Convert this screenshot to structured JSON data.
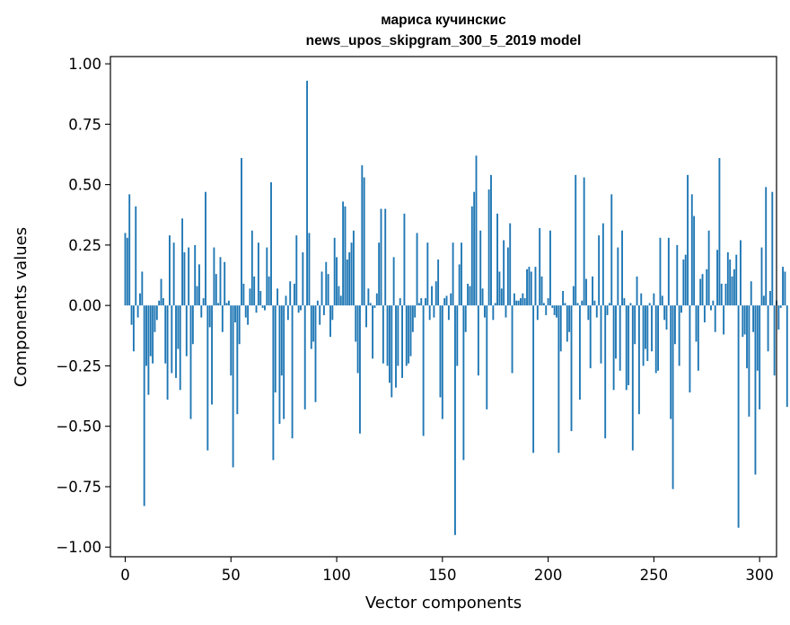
{
  "chart_data": {
    "type": "bar",
    "title": "мариса кучинскис",
    "subtitle": "news_upos_skipgram_300_5_2019 model",
    "xlabel": "Vector components",
    "ylabel": "Components values",
    "xlim": [
      -7,
      308
    ],
    "ylim": [
      -1.04,
      1.03
    ],
    "xticks": [
      0,
      50,
      100,
      150,
      200,
      250,
      300
    ],
    "xtick_labels": [
      "0",
      "50",
      "100",
      "150",
      "200",
      "250",
      "300"
    ],
    "yticks": [
      1.0,
      0.75,
      0.5,
      0.25,
      0.0,
      -0.25,
      -0.5,
      -0.75,
      -1.0
    ],
    "ytick_labels": [
      "1.00",
      "0.75",
      "0.50",
      "0.25",
      "0.00",
      "−0.25",
      "−0.50",
      "−0.75",
      "−1.00"
    ],
    "grid": false,
    "bar_color": "#1f77b4",
    "values": [
      0.3,
      0.28,
      0.46,
      -0.08,
      -0.19,
      0.41,
      -0.05,
      0.05,
      0.14,
      -0.83,
      -0.25,
      -0.37,
      -0.21,
      -0.24,
      -0.11,
      -0.06,
      0.02,
      0.11,
      0.03,
      -0.24,
      -0.39,
      0.29,
      -0.28,
      0.26,
      -0.3,
      -0.18,
      -0.35,
      0.36,
      0.22,
      -0.21,
      0.24,
      -0.47,
      -0.16,
      0.25,
      0.08,
      0.17,
      -0.05,
      0.03,
      0.47,
      -0.6,
      -0.09,
      -0.41,
      0.24,
      0.13,
      0.01,
      0.2,
      -0.11,
      0.18,
      0.01,
      0.02,
      -0.29,
      -0.67,
      -0.07,
      -0.45,
      -0.16,
      0.61,
      0.09,
      -0.05,
      -0.08,
      0.07,
      0.31,
      0.12,
      -0.03,
      0.26,
      0.06,
      -0.01,
      -0.02,
      0.24,
      0.12,
      0.51,
      -0.64,
      -0.36,
      0.07,
      -0.49,
      -0.29,
      -0.47,
      0.04,
      -0.06,
      0.1,
      -0.55,
      0.09,
      0.29,
      -0.03,
      -0.02,
      0.22,
      -0.43,
      0.93,
      0.3,
      -0.18,
      -0.15,
      -0.4,
      0.02,
      -0.08,
      0.14,
      -0.04,
      0.18,
      0.13,
      -0.13,
      -0.06,
      0.28,
      0.2,
      0.08,
      0.04,
      0.43,
      0.41,
      0.19,
      0.22,
      0.26,
      0.31,
      -0.15,
      -0.28,
      -0.53,
      0.58,
      0.53,
      -0.09,
      0.07,
      0.01,
      -0.22,
      -0.01,
      0.05,
      0.26,
      0.4,
      -0.24,
      0.4,
      -0.25,
      -0.32,
      -0.38,
      0.2,
      -0.34,
      -0.25,
      0.03,
      -0.3,
      0.38,
      -0.25,
      -0.24,
      -0.21,
      -0.11,
      -0.05,
      0.3,
      0.01,
      0.03,
      -0.54,
      0.03,
      0.26,
      -0.06,
      0.08,
      -0.05,
      0.1,
      0.19,
      -0.38,
      -0.47,
      0.03,
      0.04,
      -0.06,
      0.05,
      0.26,
      -0.95,
      -0.25,
      0.17,
      0.26,
      -0.64,
      -0.11,
      0.09,
      0.08,
      0.41,
      0.47,
      0.62,
      -0.29,
      0.31,
      0.07,
      -0.05,
      -0.43,
      0.48,
      0.54,
      -0.06,
      0.01,
      0.38,
      0.14,
      0.07,
      0.27,
      -0.05,
      0.24,
      0.34,
      -0.28,
      0.05,
      0.02,
      0.02,
      0.03,
      0.05,
      0.03,
      0.15,
      0.16,
      0.14,
      -0.61,
      0.16,
      -0.06,
      0.32,
      0.12,
      0.01,
      -0.04,
      0.03,
      0.31,
      -0.01,
      -0.04,
      -0.05,
      -0.61,
      -0.19,
      0.06,
      0.01,
      -0.15,
      -0.11,
      -0.52,
      0.08,
      0.54,
      0.01,
      -0.39,
      0.02,
      0.53,
      0.11,
      -0.06,
      -0.26,
      0.12,
      0.02,
      -0.05,
      0.29,
      -0.24,
      0.34,
      -0.55,
      -0.04,
      0.01,
      0.46,
      -0.35,
      -0.22,
      0.24,
      -0.27,
      0.31,
      0.03,
      -0.35,
      -0.33,
      0.01,
      -0.6,
      -0.16,
      0.12,
      -0.45,
      0.05,
      -0.25,
      -0.18,
      -0.23,
      0.01,
      -0.19,
      0.05,
      -0.28,
      -0.27,
      0.28,
      0.04,
      -0.06,
      -0.1,
      0.28,
      -0.47,
      -0.76,
      -0.16,
      0.25,
      -0.25,
      -0.03,
      0.19,
      0.21,
      0.54,
      -0.36,
      0.46,
      0.37,
      -0.15,
      -0.27,
      0.11,
      0.13,
      -0.07,
      0.15,
      0.31,
      -0.02,
      0.02,
      -0.11,
      0.23,
      0.61,
      0.09,
      -0.12,
      0.09,
      0.22,
      0.19,
      0.12,
      0.15,
      0.21,
      -0.92,
      0.27,
      -0.13,
      -0.12,
      -0.26,
      -0.46,
      0.1,
      -0.11,
      -0.7,
      -0.27,
      -0.43,
      0.24,
      0.04,
      0.49,
      -0.19,
      0.06,
      0.47,
      -0.29,
      0.02,
      -0.1,
      -0.01,
      0.16,
      0.14,
      -0.42
    ]
  }
}
